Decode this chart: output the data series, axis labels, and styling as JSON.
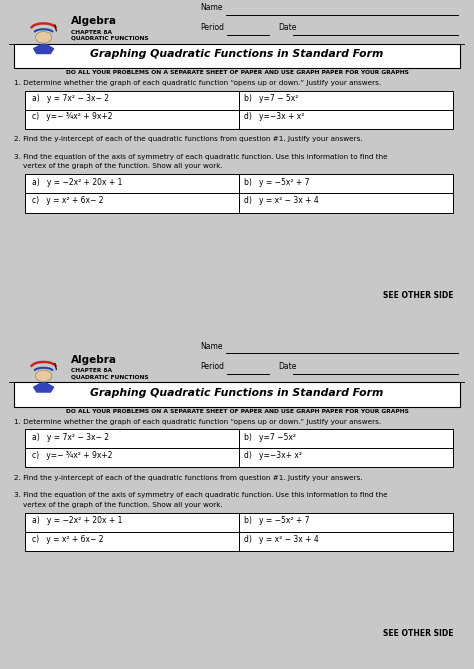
{
  "bg_color": "#ffffff",
  "page_bg": "#d0d0d0",
  "title": "Graphing Quadratic Functions in Standard Form",
  "algebra_label": "Algebra",
  "chapter_line1": "CHAPTER 8A",
  "chapter_line2": "QUADRATIC FUNCTIONS",
  "bold_instruction": "DO ALL YOUR PROBLEMS ON A SEPARATE SHEET OF PAPER AND USE GRAPH PAPER FOR YOUR GRAPHS",
  "q1_text": "1. Determine whether the graph of each quadratic function “opens up or down.” Justify your answers.",
  "q1_cells_top": [
    [
      "a)   y = 7x² − 3x− 2",
      "b)   y=7 − 5x²"
    ],
    [
      "c)   y=− ¾x² + 9x+2",
      "d)   y=−3x + x²"
    ]
  ],
  "q1_cells_bot": [
    [
      "a)   y = 7x² − 3x− 2",
      "b)   y=7 −5x²"
    ],
    [
      "c)   y=− ¾x² + 9x+2",
      "d)   y=−3x+ x²"
    ]
  ],
  "q2_text": "2. Find the y-intercept of each of the quadratic functions from question #1. Justify your answers.",
  "q3_text_line1": "3. Find the equation of the axis of symmetry of each quadratic function. Use this information to find the",
  "q3_text_line2": "    vertex of the graph of the function. Show all your work.",
  "q3_cells": [
    [
      "a)   y = −2x² + 20x + 1",
      "b)   y = −5x² + 7"
    ],
    [
      "c)   y = x² + 6x− 2",
      "d)   y = x² − 3x + 4"
    ]
  ],
  "see_other": "SEE OTHER SIDE",
  "name_label": "Name",
  "period_label": "Period",
  "date_label": "Date"
}
